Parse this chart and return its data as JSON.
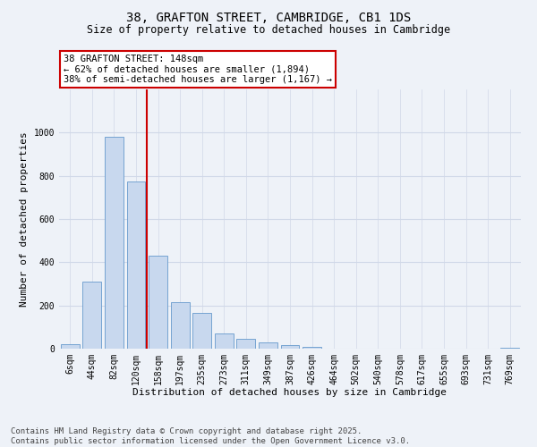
{
  "title": "38, GRAFTON STREET, CAMBRIDGE, CB1 1DS",
  "subtitle": "Size of property relative to detached houses in Cambridge",
  "xlabel": "Distribution of detached houses by size in Cambridge",
  "ylabel": "Number of detached properties",
  "categories": [
    "6sqm",
    "44sqm",
    "82sqm",
    "120sqm",
    "158sqm",
    "197sqm",
    "235sqm",
    "273sqm",
    "311sqm",
    "349sqm",
    "387sqm",
    "426sqm",
    "464sqm",
    "502sqm",
    "540sqm",
    "578sqm",
    "617sqm",
    "655sqm",
    "693sqm",
    "731sqm",
    "769sqm"
  ],
  "values": [
    20,
    310,
    980,
    775,
    430,
    215,
    165,
    70,
    45,
    30,
    15,
    8,
    0,
    0,
    0,
    0,
    0,
    0,
    0,
    0,
    5
  ],
  "bar_color": "#c8d8ee",
  "bar_edgecolor": "#6699cc",
  "annotation_title": "38 GRAFTON STREET: 148sqm",
  "annotation_line1": "← 62% of detached houses are smaller (1,894)",
  "annotation_line2": "38% of semi-detached houses are larger (1,167) →",
  "annotation_box_color": "#ffffff",
  "annotation_box_edgecolor": "#cc0000",
  "vline_color": "#cc0000",
  "vline_x": 3.5,
  "ylim": [
    0,
    1200
  ],
  "yticks": [
    0,
    200,
    400,
    600,
    800,
    1000
  ],
  "footer_line1": "Contains HM Land Registry data © Crown copyright and database right 2025.",
  "footer_line2": "Contains public sector information licensed under the Open Government Licence v3.0.",
  "background_color": "#eef2f8",
  "grid_color": "#d0d8e8",
  "title_fontsize": 10,
  "subtitle_fontsize": 8.5,
  "axis_label_fontsize": 8,
  "tick_fontsize": 7,
  "annotation_fontsize": 7.5,
  "footer_fontsize": 6.5
}
